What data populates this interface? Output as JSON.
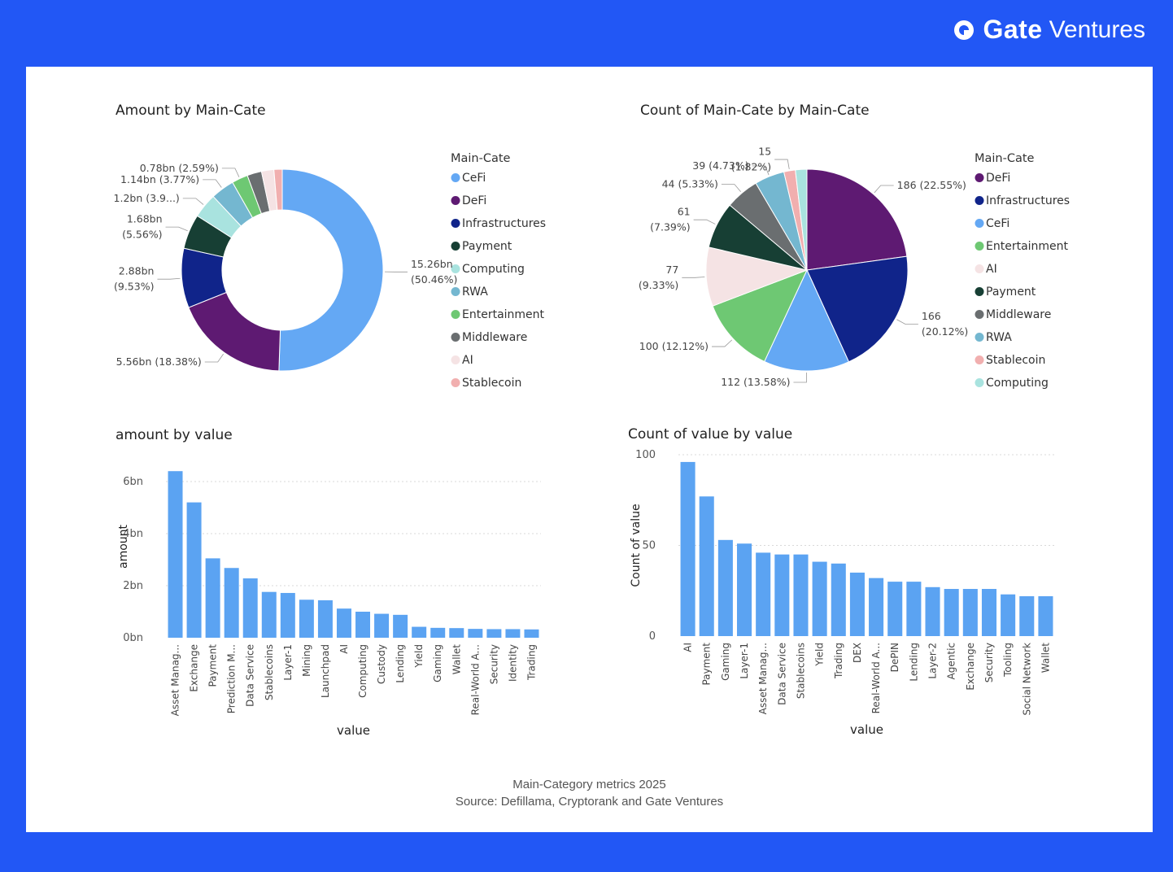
{
  "brand": {
    "name": "Gate",
    "suffix": "Ventures"
  },
  "colors": {
    "background": "#2257F5",
    "bar": "#5BA3F2",
    "CeFi": "#64A8F4",
    "DeFi": "#5E1A72",
    "Infrastructures": "#10248A",
    "Payment": "#173F34",
    "Computing": "#A9E3DF",
    "RWA": "#74B7D0",
    "Entertainment": "#6EC873",
    "Middleware": "#6A6E70",
    "AI": "#F5E3E4",
    "Stablecoin": "#F1AFAF"
  },
  "footer": {
    "line1": "Main-Category metrics 2025",
    "line2": "Source: Defillama, Cryptorank and Gate Ventures"
  },
  "chart_data": [
    {
      "type": "pie",
      "variant": "donut",
      "title": "Amount by Main-Cate",
      "legend_title": "Main-Cate",
      "legend_position": "right",
      "slices": [
        {
          "name": "CeFi",
          "value": 15.26,
          "label": "15.26bn\n(50.46%)"
        },
        {
          "name": "DeFi",
          "value": 5.56,
          "label": "5.56bn (18.38%)"
        },
        {
          "name": "Infrastructures",
          "value": 2.88,
          "label": "2.88bn\n(9.53%)"
        },
        {
          "name": "Payment",
          "value": 1.68,
          "label": "1.68bn\n(5.56%)"
        },
        {
          "name": "Computing",
          "value": 1.2,
          "label": "1.2bn (3.9...)"
        },
        {
          "name": "RWA",
          "value": 1.14,
          "label": "1.14bn (3.77%)"
        },
        {
          "name": "Entertainment",
          "value": 0.78,
          "label": "0.78bn (2.59%)"
        },
        {
          "name": "Middleware",
          "value": 0.7,
          "label": ""
        },
        {
          "name": "AI",
          "value": 0.6,
          "label": ""
        },
        {
          "name": "Stablecoin",
          "value": 0.4,
          "label": ""
        }
      ],
      "legend": [
        "CeFi",
        "DeFi",
        "Infrastructures",
        "Payment",
        "Computing",
        "RWA",
        "Entertainment",
        "Middleware",
        "AI",
        "Stablecoin"
      ]
    },
    {
      "type": "pie",
      "title": "Count of Main-Cate by Main-Cate",
      "legend_title": "Main-Cate",
      "legend_position": "right",
      "slices": [
        {
          "name": "DeFi",
          "value": 186,
          "label": "186 (22.55%)"
        },
        {
          "name": "Infrastructures",
          "value": 166,
          "label": "166\n(20.12%)"
        },
        {
          "name": "CeFi",
          "value": 112,
          "label": "112 (13.58%)"
        },
        {
          "name": "Entertainment",
          "value": 100,
          "label": "100 (12.12%)"
        },
        {
          "name": "AI",
          "value": 77,
          "label": "77\n(9.33%)"
        },
        {
          "name": "Payment",
          "value": 61,
          "label": "61\n(7.39%)"
        },
        {
          "name": "Middleware",
          "value": 44,
          "label": "44 (5.33%)"
        },
        {
          "name": "RWA",
          "value": 39,
          "label": "39 (4.73%)"
        },
        {
          "name": "Stablecoin",
          "value": 15,
          "label": "15\n(1.82%)"
        },
        {
          "name": "Computing",
          "value": 15,
          "label": ""
        }
      ],
      "legend": [
        "DeFi",
        "Infrastructures",
        "CeFi",
        "Entertainment",
        "AI",
        "Payment",
        "Middleware",
        "RWA",
        "Stablecoin",
        "Computing"
      ]
    },
    {
      "type": "bar",
      "title": "amount by value",
      "xlabel": "value",
      "ylabel": "amount",
      "ylim": [
        0,
        7000000000
      ],
      "yticks": [
        0,
        2000000000,
        4000000000,
        6000000000
      ],
      "ytick_labels": [
        "0bn",
        "2bn",
        "4bn",
        "6bn"
      ],
      "grid": true,
      "categories": [
        "Asset Manag...",
        "Exchange",
        "Payment",
        "Prediction M...",
        "Data Service",
        "Stablecoins",
        "Layer-1",
        "Mining",
        "Launchpad",
        "AI",
        "Computing",
        "Custody",
        "Lending",
        "Yield",
        "Gaming",
        "Wallet",
        "Real-World A...",
        "Security",
        "Identity",
        "Trading"
      ],
      "values": [
        6400000000,
        5200000000,
        3050000000,
        2680000000,
        2280000000,
        1760000000,
        1720000000,
        1460000000,
        1440000000,
        1120000000,
        1000000000,
        920000000,
        880000000,
        420000000,
        380000000,
        370000000,
        340000000,
        330000000,
        330000000,
        320000000
      ]
    },
    {
      "type": "bar",
      "title": "Count of value by value",
      "xlabel": "value",
      "ylabel": "Count of value",
      "ylim": [
        0,
        100
      ],
      "yticks": [
        0,
        50,
        100
      ],
      "ytick_labels": [
        "0",
        "50",
        "100"
      ],
      "grid": true,
      "categories": [
        "AI",
        "Payment",
        "Gaming",
        "Layer-1",
        "Asset Manag...",
        "Data Service",
        "Stablecoins",
        "Yield",
        "Trading",
        "DEX",
        "Real-World A...",
        "DePIN",
        "Lending",
        "Layer-2",
        "Agentic",
        "Exchange",
        "Security",
        "Tooling",
        "Social Network",
        "Wallet"
      ],
      "values": [
        96,
        77,
        53,
        51,
        46,
        45,
        45,
        41,
        40,
        35,
        32,
        30,
        30,
        27,
        26,
        26,
        26,
        23,
        22,
        22
      ]
    }
  ]
}
